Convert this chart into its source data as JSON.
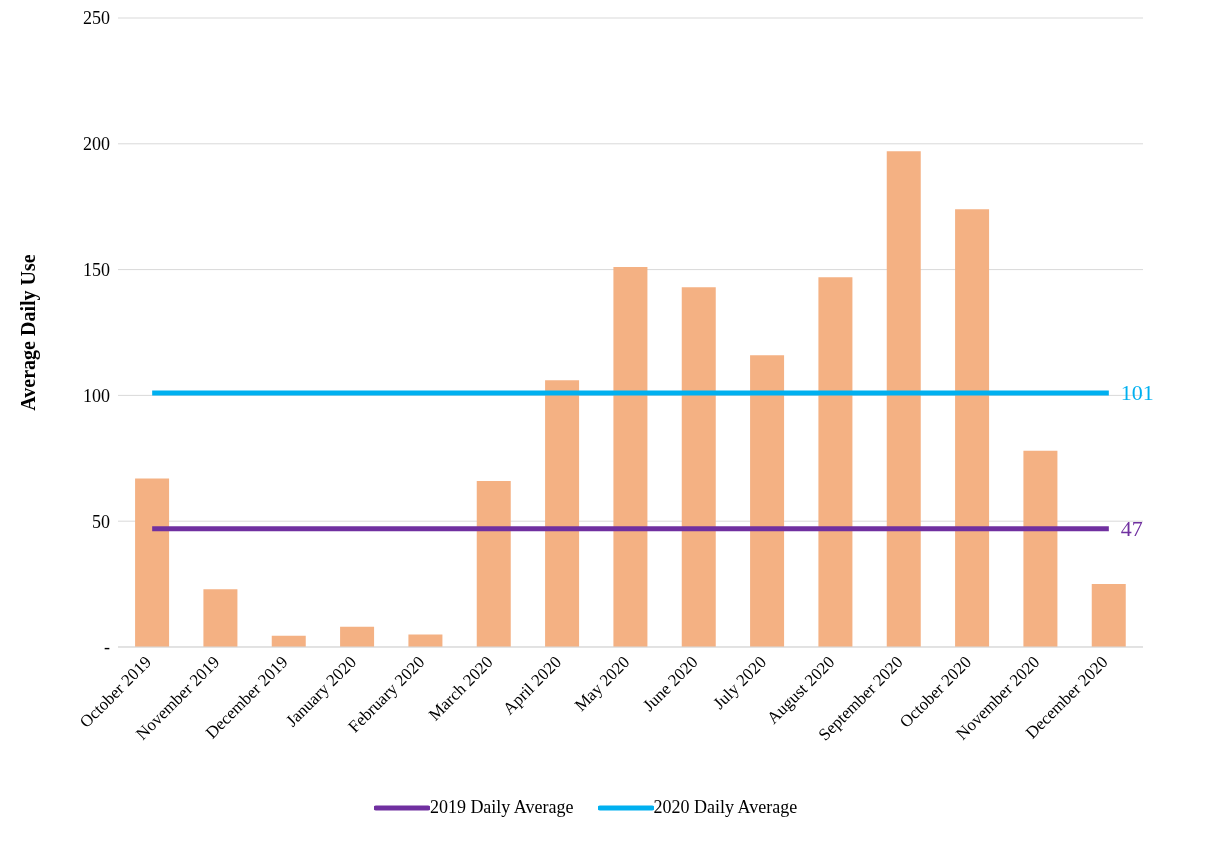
{
  "chart_data": {
    "type": "bar",
    "ylabel": "Average Daily Use",
    "categories": [
      "October 2019",
      "November 2019",
      "December 2019",
      "January 2020",
      "February 2020",
      "March 2020",
      "April 2020",
      "May 2020",
      "June 2020",
      "July 2020",
      "August 2020",
      "September 2020",
      "October 2020",
      "November 2020",
      "December 2020"
    ],
    "series": [
      {
        "color": "#f4b183",
        "values": [
          67,
          23,
          4.5,
          8,
          5,
          66,
          106,
          151,
          143,
          116,
          147,
          197,
          174,
          78,
          25
        ]
      },
      {
        "type": "line",
        "name": "2019 Daily Average",
        "color": "#7030a0",
        "values": [
          47,
          47,
          47,
          47,
          47,
          47,
          47,
          47,
          47,
          47,
          47,
          47,
          47,
          47,
          47
        ],
        "value_labels": [
          null,
          null,
          null,
          null,
          null,
          null,
          null,
          null,
          null,
          null,
          null,
          null,
          null,
          null,
          "47"
        ]
      },
      {
        "type": "line",
        "name": "2020 Daily Average",
        "color": "#00b0f0",
        "values": [
          101,
          101,
          101,
          101,
          101,
          101,
          101,
          101,
          101,
          101,
          101,
          101,
          101,
          101,
          101
        ],
        "value_labels": [
          null,
          null,
          null,
          null,
          null,
          null,
          null,
          null,
          null,
          null,
          null,
          null,
          null,
          null,
          "101"
        ]
      }
    ],
    "ylim": [
      0,
      250
    ],
    "yticks": [
      {
        "value": 0,
        "label": "-"
      },
      50,
      100,
      150,
      200,
      250
    ],
    "grid": "y",
    "legend": "bottom",
    "marker": "none",
    "line_style": "solid"
  }
}
